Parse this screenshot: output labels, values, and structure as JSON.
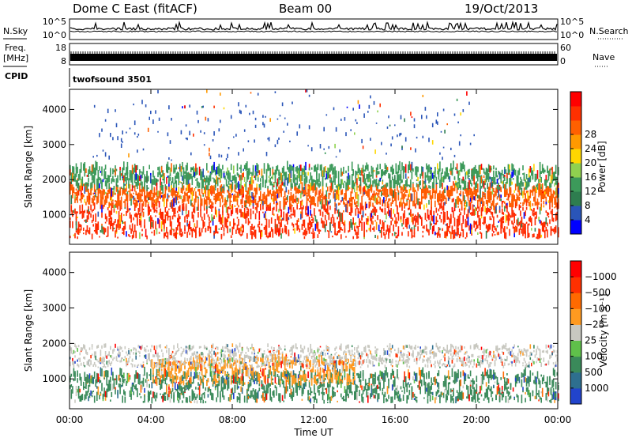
{
  "header": {
    "station": "Dome C East (fitACF)",
    "beam": "Beam 00",
    "date": "19/Oct/2013"
  },
  "side_labels": {
    "nsky": "N.Sky",
    "freq_line1": "Freq.",
    "freq_line2": "[MHz]",
    "cpid": "CPID",
    "nsearch": "N.Search",
    "nave": "Nave"
  },
  "top_panels": {
    "nsky_left_top": "10^5",
    "nsky_left_bottom": "10^0",
    "nsky_right_top": "10^5",
    "nsky_right_bottom": "10^0",
    "freq_left_top": "18",
    "freq_left_bottom": "8",
    "nave_right_top": "60",
    "nave_right_bottom": "0",
    "cpid_text": "twofsound 3501"
  },
  "chart_data": [
    {
      "type": "heatmap",
      "title": "",
      "quantity": "Power",
      "x": [
        0,
        4,
        8,
        12,
        16,
        20,
        24
      ],
      "xlim": [
        0,
        24
      ],
      "ylim": [
        180,
        4550
      ],
      "ylabel": "Slant Range [km]",
      "xticks": [
        "00:00",
        "04:00",
        "08:00",
        "12:00",
        "16:00",
        "20:00",
        "00:00"
      ],
      "yticks": [
        1000,
        2000,
        3000,
        4000
      ],
      "colorbar": {
        "label": "Power [dB]",
        "ticks": [
          "4",
          "8",
          "12",
          "16",
          "20",
          "24",
          "28"
        ],
        "colors": [
          "#0000ff",
          "#2a55b8",
          "#2e7d4f",
          "#3c9a5a",
          "#8fd14f",
          "#ffd700",
          "#ff9900",
          "#ff6000",
          "#ff3000",
          "#ff0000"
        ]
      },
      "bands": [
        {
          "range_km": [
            300,
            1200
          ],
          "dominant": "#ff2a00",
          "hours": [
            0,
            24
          ]
        },
        {
          "range_km": [
            1200,
            1700
          ],
          "dominant": "#ff5a00",
          "hours": [
            0,
            24
          ]
        },
        {
          "range_km": [
            1700,
            2300
          ],
          "dominant": "#3c9a5a",
          "hours": [
            0,
            24
          ]
        },
        {
          "range_km": [
            2500,
            4500
          ],
          "dominant": "#2a55b8",
          "hours": [
            1,
            20
          ]
        }
      ]
    },
    {
      "type": "heatmap",
      "title": "",
      "quantity": "Velocity",
      "x": [
        0,
        4,
        8,
        12,
        16,
        20,
        24
      ],
      "xlim": [
        0,
        24
      ],
      "ylim": [
        180,
        4550
      ],
      "ylabel": "Slant Range [km]",
      "xlabel": "Time UT",
      "xticks": [
        "00:00",
        "04:00",
        "08:00",
        "12:00",
        "16:00",
        "20:00",
        "00:00"
      ],
      "yticks": [
        1000,
        2000,
        3000,
        4000
      ],
      "colorbar": {
        "label": "Velocity [m s⁻¹]",
        "ticks": [
          "1000",
          "500",
          "100",
          "25",
          "−25",
          "−100",
          "−500",
          "−1000"
        ],
        "colors": [
          "#2244cc",
          "#2e6f8f",
          "#3a8a5a",
          "#5fc04a",
          "#c8c8c0",
          "#ff9a20",
          "#ff6a00",
          "#ff3000",
          "#ff0000"
        ]
      },
      "bands": [
        {
          "range_km": [
            300,
            1100
          ],
          "dominant": "#3a8a5a",
          "hours": [
            0,
            24
          ]
        },
        {
          "range_km": [
            800,
            1500
          ],
          "dominant": "#ff9a20",
          "hours": [
            4,
            14
          ]
        },
        {
          "range_km": [
            1300,
            1900
          ],
          "dominant": "#c8c8c0",
          "hours": [
            0,
            24
          ]
        }
      ]
    }
  ]
}
